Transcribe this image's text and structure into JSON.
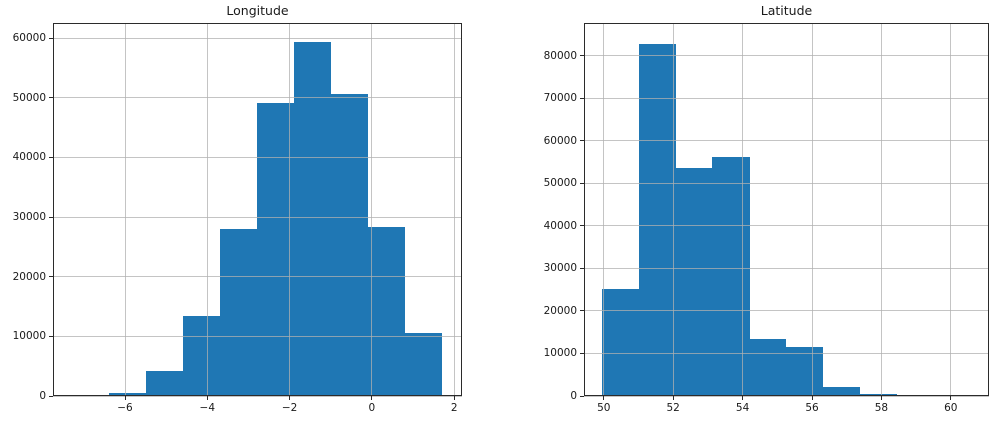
{
  "figure": {
    "background_color": "#ffffff",
    "bar_color": "#1f77b4",
    "grid_color": "#b0b0b0",
    "spine_color": "#2b2b2b",
    "text_color": "#1a1a1a"
  },
  "chart_data": [
    {
      "type": "bar",
      "subtype": "histogram",
      "title": "Longitude",
      "xlabel": "",
      "ylabel": "",
      "grid": true,
      "legend": false,
      "bar_color": "#1f77b4",
      "xlim": [
        -7.75,
        2.19
      ],
      "ylim": [
        0,
        62550
      ],
      "xticks": [
        -6,
        -4,
        -2,
        0,
        2
      ],
      "xtick_labels": [
        "−6",
        "−4",
        "−2",
        "0",
        "2"
      ],
      "yticks": [
        0,
        10000,
        20000,
        30000,
        40000,
        50000,
        60000
      ],
      "ytick_labels": [
        "0",
        "10000",
        "20000",
        "30000",
        "40000",
        "50000",
        "60000"
      ],
      "bin_edges": [
        -7.3,
        -6.4,
        -5.5,
        -4.6,
        -3.7,
        -2.8,
        -1.9,
        -1.0,
        -0.1,
        0.8,
        1.7
      ],
      "counts": [
        30,
        420,
        4200,
        13400,
        28000,
        49200,
        59300,
        50700,
        28400,
        10600
      ]
    },
    {
      "type": "bar",
      "subtype": "histogram",
      "title": "Latitude",
      "xlabel": "",
      "ylabel": "",
      "grid": true,
      "legend": false,
      "bar_color": "#1f77b4",
      "xlim": [
        49.43,
        61.1
      ],
      "ylim": [
        0,
        87700
      ],
      "xticks": [
        50,
        52,
        54,
        56,
        58,
        60
      ],
      "xtick_labels": [
        "50",
        "52",
        "54",
        "56",
        "58",
        "60"
      ],
      "yticks": [
        0,
        10000,
        20000,
        30000,
        40000,
        50000,
        60000,
        70000,
        80000
      ],
      "ytick_labels": [
        "0",
        "10000",
        "20000",
        "30000",
        "40000",
        "50000",
        "60000",
        "70000",
        "80000"
      ],
      "bin_edges": [
        49.95,
        51.01,
        52.07,
        53.13,
        54.2,
        55.26,
        56.32,
        57.38,
        58.44,
        59.5,
        60.56
      ],
      "counts": [
        25100,
        82800,
        53500,
        56100,
        13300,
        11600,
        2100,
        500,
        40,
        20
      ]
    }
  ]
}
